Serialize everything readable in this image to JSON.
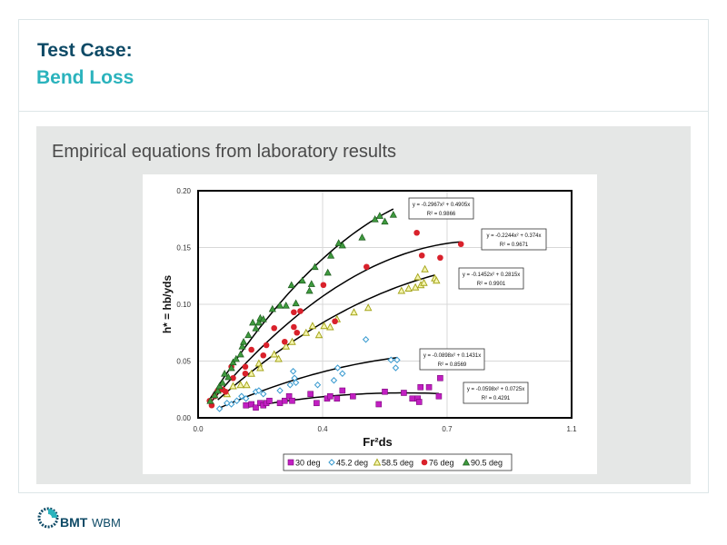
{
  "header": {
    "title_line1": "Test Case:",
    "title_line2": "Bend Loss"
  },
  "content": {
    "subtitle": "Empirical equations from laboratory results"
  },
  "logo": {
    "brand": "BMT",
    "division": "WBM",
    "colors": {
      "navy": "#0e4a66",
      "teal": "#2bb3bd"
    }
  },
  "chart_data": {
    "type": "scatter",
    "title": "",
    "xlabel": "Fr²ds",
    "ylabel": "h* = hb/yds",
    "xlim": [
      0,
      1.1
    ],
    "ylim": [
      0,
      0.2
    ],
    "x_tick_labels": [
      "0.0",
      "0.4",
      "0.7",
      "1.1"
    ],
    "x_tick_values": [
      0,
      0.3667,
      0.7333,
      1.1
    ],
    "y_tick_labels": [
      "0.00",
      "0.05",
      "0.10",
      "0.15",
      "0.20"
    ],
    "y_tick_values": [
      0,
      0.05,
      0.1,
      0.15,
      0.2
    ],
    "grid": true,
    "legend_position": "bottom",
    "series": [
      {
        "name": "30 deg",
        "marker": "square",
        "color": "#c21fc2",
        "trendline": {
          "equation": "y = -0.0598x² + 0.0725x",
          "r2": "R² = 0.4291",
          "a": -0.0598,
          "b": 0.0725,
          "x_range": [
            0.141,
            0.709
          ]
        },
        "points": [
          [
            0.141,
            0.011
          ],
          [
            0.157,
            0.012
          ],
          [
            0.17,
            0.009
          ],
          [
            0.183,
            0.013
          ],
          [
            0.192,
            0.011
          ],
          [
            0.201,
            0.013
          ],
          [
            0.21,
            0.015
          ],
          [
            0.241,
            0.013
          ],
          [
            0.255,
            0.015
          ],
          [
            0.268,
            0.019
          ],
          [
            0.277,
            0.015
          ],
          [
            0.331,
            0.021
          ],
          [
            0.349,
            0.013
          ],
          [
            0.38,
            0.017
          ],
          [
            0.389,
            0.019
          ],
          [
            0.409,
            0.017
          ],
          [
            0.425,
            0.024
          ],
          [
            0.456,
            0.019
          ],
          [
            0.532,
            0.012
          ],
          [
            0.55,
            0.023
          ],
          [
            0.606,
            0.022
          ],
          [
            0.631,
            0.017
          ],
          [
            0.647,
            0.017
          ],
          [
            0.651,
            0.014
          ],
          [
            0.655,
            0.027
          ],
          [
            0.68,
            0.027
          ],
          [
            0.709,
            0.019
          ],
          [
            0.713,
            0.035
          ]
        ]
      },
      {
        "name": "45.2 deg",
        "marker": "diamond",
        "color": "#3a9bd0",
        "trendline": {
          "equation": "y = -0.0898x² + 0.1431x",
          "r2": "R² = 0.8569",
          "a": -0.0898,
          "b": 0.1431,
          "x_range": [
            0.063,
            0.586
          ]
        },
        "points": [
          [
            0.063,
            0.008
          ],
          [
            0.085,
            0.013
          ],
          [
            0.098,
            0.012
          ],
          [
            0.114,
            0.015
          ],
          [
            0.128,
            0.019
          ],
          [
            0.141,
            0.017
          ],
          [
            0.17,
            0.023
          ],
          [
            0.179,
            0.024
          ],
          [
            0.192,
            0.021
          ],
          [
            0.241,
            0.024
          ],
          [
            0.271,
            0.029
          ],
          [
            0.28,
            0.041
          ],
          [
            0.284,
            0.035
          ],
          [
            0.288,
            0.031
          ],
          [
            0.352,
            0.029
          ],
          [
            0.4,
            0.033
          ],
          [
            0.411,
            0.044
          ],
          [
            0.425,
            0.039
          ],
          [
            0.494,
            0.069
          ],
          [
            0.568,
            0.051
          ],
          [
            0.586,
            0.051
          ],
          [
            0.582,
            0.044
          ]
        ]
      },
      {
        "name": "58.5 deg",
        "marker": "triangle-open",
        "color": "#a3a316",
        "trendline": {
          "equation": "y = -0.1452x² + 0.2815x",
          "r2": "R² = 0.9901",
          "a": -0.1452,
          "b": 0.2815,
          "x_range": [
            0.058,
            0.697
          ]
        },
        "points": [
          [
            0.058,
            0.025
          ],
          [
            0.085,
            0.021
          ],
          [
            0.103,
            0.028
          ],
          [
            0.125,
            0.029
          ],
          [
            0.143,
            0.029
          ],
          [
            0.157,
            0.039
          ],
          [
            0.179,
            0.048
          ],
          [
            0.183,
            0.044
          ],
          [
            0.224,
            0.056
          ],
          [
            0.237,
            0.052
          ],
          [
            0.259,
            0.063
          ],
          [
            0.277,
            0.067
          ],
          [
            0.318,
            0.075
          ],
          [
            0.337,
            0.081
          ],
          [
            0.356,
            0.073
          ],
          [
            0.371,
            0.081
          ],
          [
            0.389,
            0.08
          ],
          [
            0.409,
            0.087
          ],
          [
            0.459,
            0.093
          ],
          [
            0.501,
            0.097
          ],
          [
            0.599,
            0.112
          ],
          [
            0.62,
            0.114
          ],
          [
            0.64,
            0.115
          ],
          [
            0.656,
            0.117
          ],
          [
            0.665,
            0.119
          ],
          [
            0.647,
            0.124
          ],
          [
            0.668,
            0.131
          ],
          [
            0.697,
            0.123
          ],
          [
            0.702,
            0.121
          ]
        ]
      },
      {
        "name": "76 deg",
        "marker": "circle",
        "color": "#d9212b",
        "trendline": {
          "equation": "y = -0.2244x² + 0.374x",
          "r2": "R² = 0.9671",
          "a": -0.2244,
          "b": 0.374,
          "x_range": [
            0.034,
            0.774
          ]
        },
        "points": [
          [
            0.034,
            0.015
          ],
          [
            0.04,
            0.011
          ],
          [
            0.049,
            0.019
          ],
          [
            0.058,
            0.024
          ],
          [
            0.072,
            0.025
          ],
          [
            0.081,
            0.023
          ],
          [
            0.098,
            0.045
          ],
          [
            0.103,
            0.035
          ],
          [
            0.139,
            0.045
          ],
          [
            0.139,
            0.039
          ],
          [
            0.157,
            0.06
          ],
          [
            0.192,
            0.055
          ],
          [
            0.201,
            0.064
          ],
          [
            0.224,
            0.079
          ],
          [
            0.255,
            0.067
          ],
          [
            0.282,
            0.08
          ],
          [
            0.282,
            0.093
          ],
          [
            0.291,
            0.075
          ],
          [
            0.301,
            0.094
          ],
          [
            0.369,
            0.117
          ],
          [
            0.403,
            0.085
          ],
          [
            0.496,
            0.133
          ],
          [
            0.644,
            0.163
          ],
          [
            0.659,
            0.143
          ],
          [
            0.713,
            0.141
          ],
          [
            0.774,
            0.153
          ]
        ]
      },
      {
        "name": "90.5 deg",
        "marker": "triangle-filled",
        "color": "#3e9a3e",
        "trendline": {
          "equation": "y = -0.2967x² + 0.4905x",
          "r2": "R² = 0.9866",
          "a": -0.2967,
          "b": 0.4905,
          "x_range": [
            0.036,
            0.575
          ]
        },
        "points": [
          [
            0.036,
            0.015
          ],
          [
            0.049,
            0.02
          ],
          [
            0.058,
            0.024
          ],
          [
            0.063,
            0.028
          ],
          [
            0.072,
            0.031
          ],
          [
            0.078,
            0.039
          ],
          [
            0.089,
            0.036
          ],
          [
            0.098,
            0.044
          ],
          [
            0.103,
            0.049
          ],
          [
            0.112,
            0.052
          ],
          [
            0.125,
            0.056
          ],
          [
            0.13,
            0.063
          ],
          [
            0.134,
            0.067
          ],
          [
            0.148,
            0.073
          ],
          [
            0.161,
            0.084
          ],
          [
            0.17,
            0.079
          ],
          [
            0.179,
            0.084
          ],
          [
            0.183,
            0.088
          ],
          [
            0.192,
            0.087
          ],
          [
            0.219,
            0.096
          ],
          [
            0.241,
            0.099
          ],
          [
            0.259,
            0.099
          ],
          [
            0.275,
            0.117
          ],
          [
            0.288,
            0.101
          ],
          [
            0.307,
            0.121
          ],
          [
            0.328,
            0.112
          ],
          [
            0.334,
            0.118
          ],
          [
            0.344,
            0.133
          ],
          [
            0.382,
            0.128
          ],
          [
            0.391,
            0.143
          ],
          [
            0.414,
            0.154
          ],
          [
            0.425,
            0.152
          ],
          [
            0.483,
            0.159
          ],
          [
            0.521,
            0.175
          ],
          [
            0.535,
            0.178
          ],
          [
            0.55,
            0.173
          ],
          [
            0.575,
            0.179
          ]
        ]
      }
    ]
  }
}
